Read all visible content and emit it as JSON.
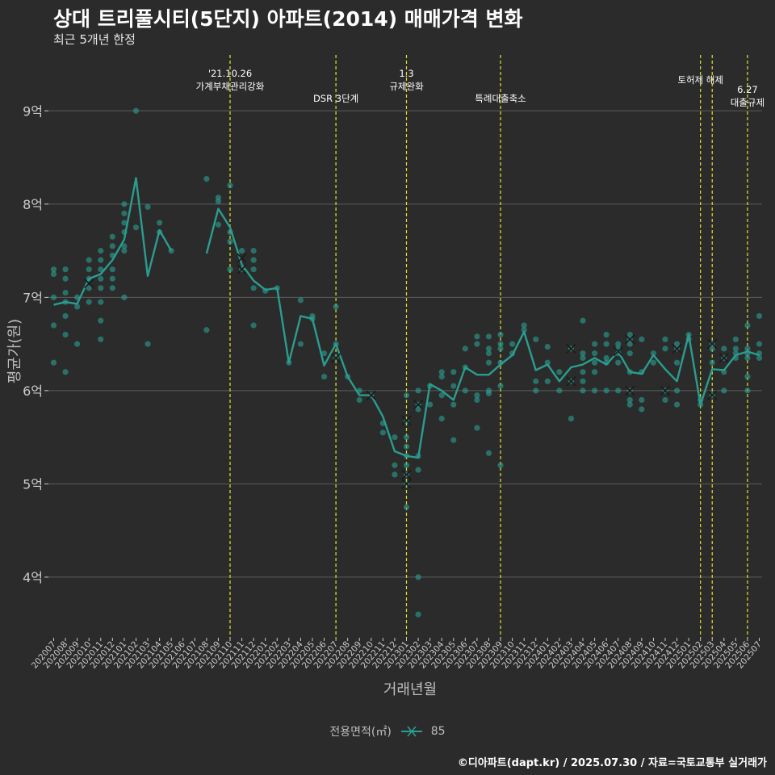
{
  "title": "상대 트리풀시티(5단지) 아파트(2014) 매매가격 변화",
  "subtitle": "최근 5개년 한정",
  "caption": "©디아파트(dapt.kr) / 2025.07.30 / 자료=국토교통부 실거래가",
  "legend": {
    "title": "전용면적(㎡)",
    "entry": "85"
  },
  "colors": {
    "background": "#2b2b2b",
    "grid": "#5c5c5c",
    "series": "#2a9d8f",
    "event_line": "#e5e52a",
    "axis_text": "#cccccc",
    "cross_marker": "#1a1a1a"
  },
  "chart_data": {
    "type": "line",
    "title": "상대 트리풀시티(5단지) 아파트(2014) 매매가격 변화",
    "xlabel": "거래년월",
    "ylabel": "평균가(원)",
    "ylim": [
      3.35,
      9.6
    ],
    "y_ticks": [
      4,
      5,
      6,
      7,
      8,
      9
    ],
    "y_tick_labels": [
      "4억",
      "5억",
      "6억",
      "7억",
      "8억",
      "9억"
    ],
    "grid": true,
    "legend_position": "bottom",
    "categories": [
      "202007",
      "202008",
      "202009",
      "202010",
      "202011",
      "202012",
      "202101",
      "202102",
      "202103",
      "202104",
      "202105",
      "202106",
      "202107",
      "202108",
      "202109",
      "202110",
      "202111",
      "202112",
      "202201",
      "202202",
      "202203",
      "202204",
      "202205",
      "202206",
      "202207",
      "202208",
      "202209",
      "202210",
      "202211",
      "202212",
      "202301",
      "202302",
      "202303",
      "202304",
      "202305",
      "202306",
      "202307",
      "202308",
      "202309",
      "202310",
      "202311",
      "202312",
      "202401",
      "202402",
      "202403",
      "202404",
      "202405",
      "202406",
      "202407",
      "202408",
      "202409",
      "202410",
      "202411",
      "202412",
      "202501",
      "202502",
      "202503",
      "202504",
      "202505",
      "202506",
      "202507"
    ],
    "series": [
      {
        "name": "85",
        "values": [
          6.92,
          6.95,
          6.93,
          7.2,
          7.25,
          7.4,
          7.62,
          8.28,
          7.23,
          7.72,
          7.5,
          null,
          null,
          7.47,
          7.95,
          7.75,
          7.35,
          7.18,
          7.08,
          7.1,
          6.3,
          6.8,
          6.77,
          6.27,
          6.5,
          6.15,
          5.95,
          5.95,
          5.72,
          5.35,
          5.3,
          5.28,
          6.07,
          6.0,
          5.9,
          6.25,
          6.17,
          6.17,
          6.28,
          6.38,
          6.63,
          6.22,
          6.28,
          6.1,
          6.25,
          6.28,
          6.35,
          6.28,
          6.42,
          6.2,
          6.18,
          6.38,
          6.23,
          6.1,
          6.6,
          5.85,
          6.23,
          6.22,
          6.38,
          6.42,
          6.38
        ],
        "points": [
          [
            0,
            7.3
          ],
          [
            0,
            7.25
          ],
          [
            0,
            7.0
          ],
          [
            0,
            6.7
          ],
          [
            0,
            6.3
          ],
          [
            1,
            7.3
          ],
          [
            1,
            7.2
          ],
          [
            1,
            7.05
          ],
          [
            1,
            6.95
          ],
          [
            1,
            6.8
          ],
          [
            1,
            6.6
          ],
          [
            1,
            6.2
          ],
          [
            2,
            7.0
          ],
          [
            2,
            6.9
          ],
          [
            2,
            6.5
          ],
          [
            3,
            7.4
          ],
          [
            3,
            7.3
          ],
          [
            3,
            7.2
          ],
          [
            3,
            7.1
          ],
          [
            3,
            6.95
          ],
          [
            4,
            7.5
          ],
          [
            4,
            7.4
          ],
          [
            4,
            7.3
          ],
          [
            4,
            7.2
          ],
          [
            4,
            7.1
          ],
          [
            4,
            6.95
          ],
          [
            4,
            6.75
          ],
          [
            4,
            6.55
          ],
          [
            5,
            7.65
          ],
          [
            5,
            7.55
          ],
          [
            5,
            7.45
          ],
          [
            5,
            7.3
          ],
          [
            5,
            7.2
          ],
          [
            5,
            7.1
          ],
          [
            6,
            8.0
          ],
          [
            6,
            7.9
          ],
          [
            6,
            7.8
          ],
          [
            6,
            7.7
          ],
          [
            6,
            7.55
          ],
          [
            6,
            7.5
          ],
          [
            6,
            7.0
          ],
          [
            7,
            9.0
          ],
          [
            7,
            7.75
          ],
          [
            8,
            7.97
          ],
          [
            8,
            6.5
          ],
          [
            9,
            7.8
          ],
          [
            9,
            7.7
          ],
          [
            10,
            7.5
          ],
          [
            13,
            8.27
          ],
          [
            13,
            6.65
          ],
          [
            14,
            8.07
          ],
          [
            14,
            8.03
          ],
          [
            14,
            7.78
          ],
          [
            15,
            8.2
          ],
          [
            15,
            7.7
          ],
          [
            15,
            7.6
          ],
          [
            15,
            7.3
          ],
          [
            16,
            7.5
          ],
          [
            16,
            7.3
          ],
          [
            17,
            7.5
          ],
          [
            17,
            7.4
          ],
          [
            17,
            7.3
          ],
          [
            17,
            7.1
          ],
          [
            17,
            6.7
          ],
          [
            18,
            7.07
          ],
          [
            19,
            7.1
          ],
          [
            20,
            6.3
          ],
          [
            21,
            6.97
          ],
          [
            21,
            6.5
          ],
          [
            22,
            6.8
          ],
          [
            22,
            6.77
          ],
          [
            23,
            6.4
          ],
          [
            23,
            6.15
          ],
          [
            24,
            6.9
          ],
          [
            24,
            6.5
          ],
          [
            24,
            6.35
          ],
          [
            25,
            6.15
          ],
          [
            26,
            6.0
          ],
          [
            26,
            5.9
          ],
          [
            27,
            5.95
          ],
          [
            28,
            5.55
          ],
          [
            28,
            5.65
          ],
          [
            29,
            5.5
          ],
          [
            29,
            5.2
          ],
          [
            29,
            5.1
          ],
          [
            30,
            5.95
          ],
          [
            30,
            5.67
          ],
          [
            30,
            5.5
          ],
          [
            30,
            5.4
          ],
          [
            30,
            5.3
          ],
          [
            30,
            5.2
          ],
          [
            30,
            5.1
          ],
          [
            30,
            5.0
          ],
          [
            30,
            4.75
          ],
          [
            31,
            6.0
          ],
          [
            31,
            5.85
          ],
          [
            31,
            5.8
          ],
          [
            31,
            5.3
          ],
          [
            31,
            5.15
          ],
          [
            31,
            4.0
          ],
          [
            31,
            3.6
          ],
          [
            32,
            5.85
          ],
          [
            32,
            6.05
          ],
          [
            33,
            6.2
          ],
          [
            33,
            6.15
          ],
          [
            33,
            5.95
          ],
          [
            33,
            5.7
          ],
          [
            34,
            6.2
          ],
          [
            34,
            6.05
          ],
          [
            34,
            5.85
          ],
          [
            34,
            5.47
          ],
          [
            35,
            6.45
          ],
          [
            35,
            6.25
          ],
          [
            35,
            6.0
          ],
          [
            36,
            6.58
          ],
          [
            36,
            6.5
          ],
          [
            36,
            5.95
          ],
          [
            36,
            5.9
          ],
          [
            36,
            5.6
          ],
          [
            37,
            6.58
          ],
          [
            37,
            6.45
          ],
          [
            37,
            6.4
          ],
          [
            37,
            6.3
          ],
          [
            37,
            6.0
          ],
          [
            37,
            5.97
          ],
          [
            37,
            5.33
          ],
          [
            38,
            6.6
          ],
          [
            38,
            6.5
          ],
          [
            38,
            6.45
          ],
          [
            38,
            6.3
          ],
          [
            38,
            6.05
          ],
          [
            38,
            5.2
          ],
          [
            39,
            6.5
          ],
          [
            39,
            6.4
          ],
          [
            40,
            6.7
          ],
          [
            40,
            6.65
          ],
          [
            41,
            6.55
          ],
          [
            41,
            6.1
          ],
          [
            41,
            6.0
          ],
          [
            42,
            6.47
          ],
          [
            42,
            6.3
          ],
          [
            42,
            6.1
          ],
          [
            43,
            6.2
          ],
          [
            43,
            6.0
          ],
          [
            44,
            6.45
          ],
          [
            44,
            6.1
          ],
          [
            44,
            5.7
          ],
          [
            45,
            6.75
          ],
          [
            45,
            6.4
          ],
          [
            45,
            6.35
          ],
          [
            45,
            6.2
          ],
          [
            45,
            6.1
          ],
          [
            45,
            6.0
          ],
          [
            46,
            6.5
          ],
          [
            46,
            6.4
          ],
          [
            46,
            6.3
          ],
          [
            46,
            6.2
          ],
          [
            46,
            6.0
          ],
          [
            47,
            6.6
          ],
          [
            47,
            6.5
          ],
          [
            47,
            6.35
          ],
          [
            47,
            6.3
          ],
          [
            47,
            6.0
          ],
          [
            48,
            6.5
          ],
          [
            48,
            6.45
          ],
          [
            48,
            6.4
          ],
          [
            48,
            6.3
          ],
          [
            48,
            6.0
          ],
          [
            49,
            6.6
          ],
          [
            49,
            6.55
          ],
          [
            49,
            6.5
          ],
          [
            49,
            6.4
          ],
          [
            49,
            6.2
          ],
          [
            49,
            6.0
          ],
          [
            49,
            5.9
          ],
          [
            49,
            5.85
          ],
          [
            50,
            6.55
          ],
          [
            50,
            6.2
          ],
          [
            50,
            5.9
          ],
          [
            50,
            5.8
          ],
          [
            51,
            6.4
          ],
          [
            51,
            6.3
          ],
          [
            52,
            6.55
          ],
          [
            52,
            6.45
          ],
          [
            52,
            6.0
          ],
          [
            52,
            5.9
          ],
          [
            53,
            6.5
          ],
          [
            53,
            6.45
          ],
          [
            53,
            6.3
          ],
          [
            53,
            6.0
          ],
          [
            53,
            5.85
          ],
          [
            54,
            6.6
          ],
          [
            54,
            6.55
          ],
          [
            55,
            5.85
          ],
          [
            55,
            5.9
          ],
          [
            56,
            6.5
          ],
          [
            56,
            6.45
          ],
          [
            56,
            6.3
          ],
          [
            56,
            5.95
          ],
          [
            57,
            6.45
          ],
          [
            57,
            6.35
          ],
          [
            57,
            6.2
          ],
          [
            57,
            6.0
          ],
          [
            58,
            6.55
          ],
          [
            58,
            6.45
          ],
          [
            58,
            6.4
          ],
          [
            58,
            6.35
          ],
          [
            59,
            6.7
          ],
          [
            59,
            6.45
          ],
          [
            59,
            6.4
          ],
          [
            59,
            6.35
          ],
          [
            59,
            6.15
          ],
          [
            59,
            6.0
          ],
          [
            60,
            6.8
          ],
          [
            60,
            6.5
          ],
          [
            60,
            6.4
          ],
          [
            60,
            6.35
          ]
        ],
        "cross_points": [
          [
            3,
            7.15
          ],
          [
            16,
            7.42
          ],
          [
            16,
            7.3
          ],
          [
            24,
            6.35
          ],
          [
            27,
            5.95
          ],
          [
            30,
            5.68
          ],
          [
            30,
            5.1
          ],
          [
            30,
            5.0
          ],
          [
            31,
            5.85
          ],
          [
            44,
            6.45
          ],
          [
            44,
            6.1
          ],
          [
            48,
            6.42
          ],
          [
            49,
            6.55
          ],
          [
            49,
            6.0
          ],
          [
            52,
            6.0
          ],
          [
            53,
            6.45
          ],
          [
            56,
            6.5
          ],
          [
            56,
            5.95
          ],
          [
            57,
            6.35
          ]
        ]
      }
    ],
    "events": [
      {
        "index": 15,
        "label_lines": [
          "'21.10.26",
          "가계부채관리강화"
        ]
      },
      {
        "index": 24,
        "label_lines": [
          "DSR 3단계"
        ]
      },
      {
        "index": 30,
        "label_lines": [
          "1.3",
          "규제완화"
        ]
      },
      {
        "index": 38,
        "label_lines": [
          "특례대출축소"
        ]
      },
      {
        "index": 55,
        "label_lines": [
          "토허제 해제"
        ]
      },
      {
        "index": 56,
        "label_lines": []
      },
      {
        "index": 59,
        "label_lines": [
          "6.27",
          "대출규제"
        ]
      }
    ]
  }
}
